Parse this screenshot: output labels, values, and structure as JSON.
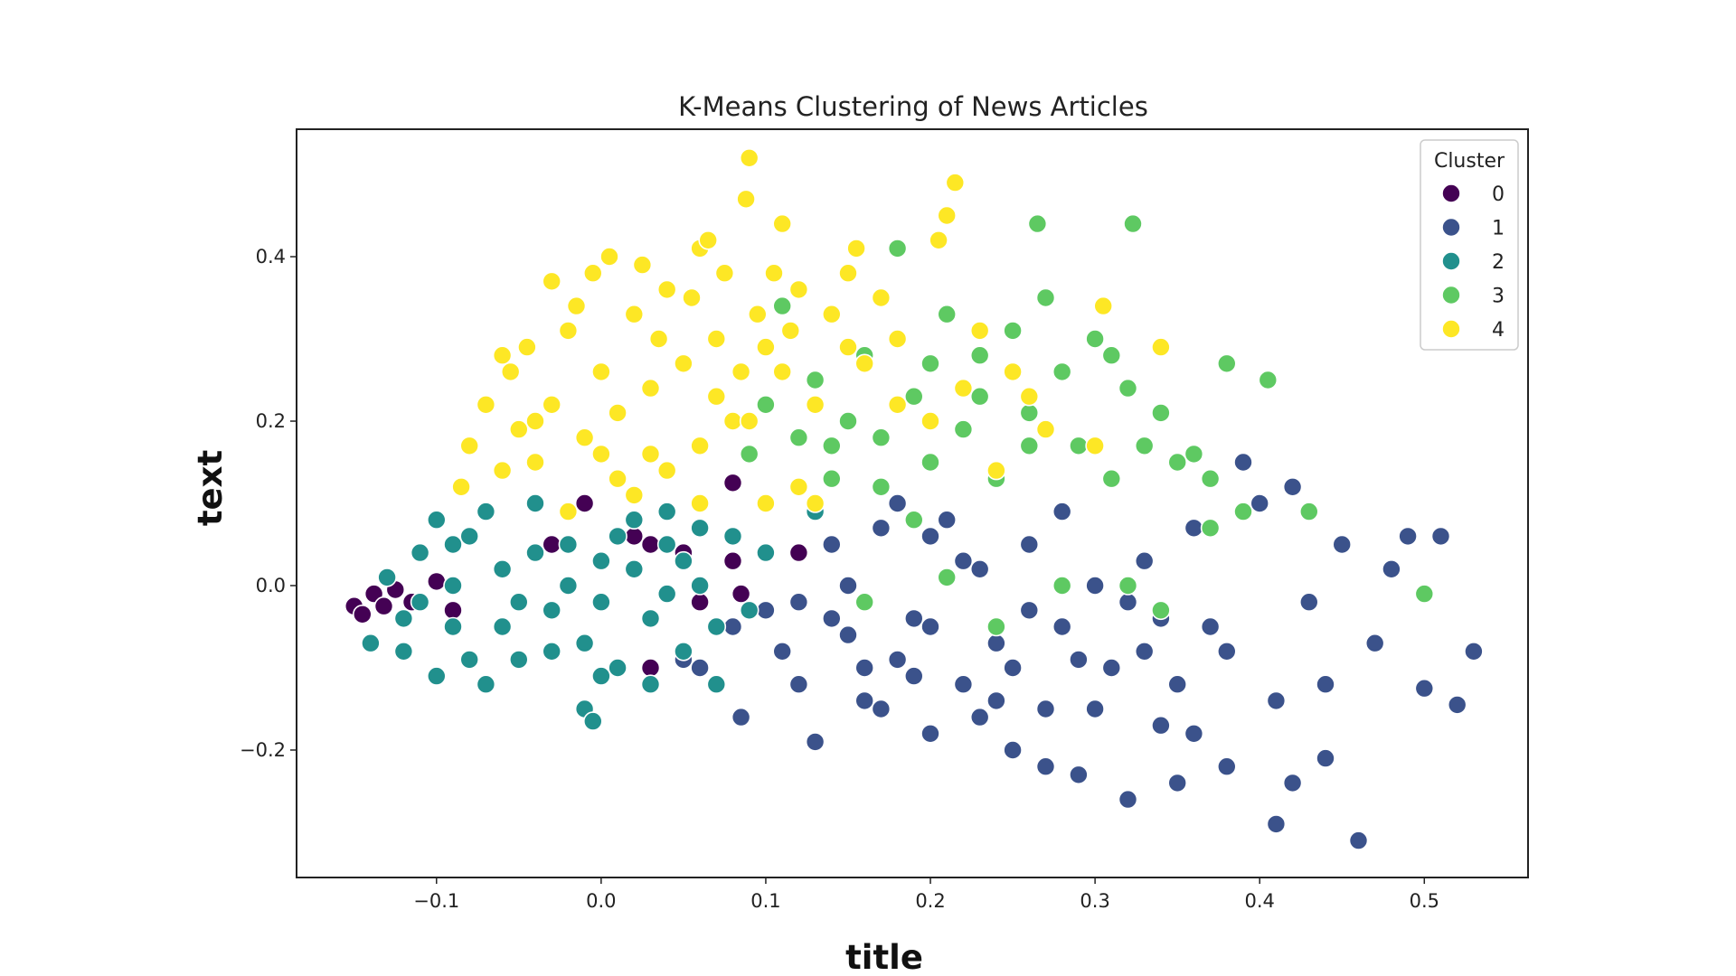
{
  "chart_data": {
    "type": "scatter",
    "title": "K-Means Clustering of News Articles",
    "xlabel": "title",
    "ylabel": "text",
    "xlim": [
      -0.185,
      0.563
    ],
    "ylim": [
      -0.355,
      0.555
    ],
    "xticks": [
      -0.1,
      0.0,
      0.1,
      0.2,
      0.3,
      0.4,
      0.5
    ],
    "xtick_labels": [
      "−0.1",
      "0.0",
      "0.1",
      "0.2",
      "0.3",
      "0.4",
      "0.5"
    ],
    "yticks": [
      -0.2,
      0.0,
      0.2,
      0.4
    ],
    "ytick_labels": [
      "−0.2",
      "0.0",
      "0.2",
      "0.4"
    ],
    "grid": false,
    "legend": {
      "title": "Cluster",
      "placement": "top-right"
    },
    "series": [
      {
        "name": "0",
        "color": "#440154",
        "points": [
          [
            -0.15,
            -0.025
          ],
          [
            -0.145,
            -0.035
          ],
          [
            -0.138,
            -0.01
          ],
          [
            -0.132,
            -0.025
          ],
          [
            -0.125,
            -0.005
          ],
          [
            -0.115,
            -0.02
          ],
          [
            -0.1,
            0.005
          ],
          [
            -0.09,
            -0.03
          ],
          [
            -0.06,
            0.02
          ],
          [
            -0.03,
            0.05
          ],
          [
            0.02,
            0.06
          ],
          [
            0.03,
            0.05
          ],
          [
            0.05,
            0.04
          ],
          [
            0.06,
            -0.02
          ],
          [
            0.08,
            0.125
          ],
          [
            0.08,
            0.03
          ],
          [
            0.085,
            -0.01
          ],
          [
            0.12,
            0.04
          ],
          [
            0.03,
            -0.1
          ],
          [
            -0.01,
            0.1
          ]
        ]
      },
      {
        "name": "1",
        "color": "#3b528b",
        "points": [
          [
            0.05,
            -0.09
          ],
          [
            0.06,
            -0.1
          ],
          [
            0.08,
            -0.05
          ],
          [
            0.085,
            -0.16
          ],
          [
            0.1,
            -0.03
          ],
          [
            0.11,
            -0.08
          ],
          [
            0.12,
            -0.12
          ],
          [
            0.13,
            -0.19
          ],
          [
            0.14,
            0.05
          ],
          [
            0.15,
            -0.06
          ],
          [
            0.16,
            -0.1
          ],
          [
            0.17,
            0.07
          ],
          [
            0.17,
            -0.15
          ],
          [
            0.18,
            0.1
          ],
          [
            0.19,
            -0.04
          ],
          [
            0.2,
            -0.18
          ],
          [
            0.21,
            0.08
          ],
          [
            0.22,
            -0.12
          ],
          [
            0.23,
            0.02
          ],
          [
            0.24,
            -0.07
          ],
          [
            0.25,
            -0.2
          ],
          [
            0.26,
            0.05
          ],
          [
            0.27,
            -0.15
          ],
          [
            0.28,
            0.09
          ],
          [
            0.29,
            -0.23
          ],
          [
            0.3,
            0.0
          ],
          [
            0.31,
            -0.1
          ],
          [
            0.32,
            -0.26
          ],
          [
            0.33,
            0.03
          ],
          [
            0.34,
            -0.17
          ],
          [
            0.35,
            -0.24
          ],
          [
            0.36,
            0.07
          ],
          [
            0.37,
            -0.05
          ],
          [
            0.38,
            -0.22
          ],
          [
            0.39,
            0.15
          ],
          [
            0.4,
            0.1
          ],
          [
            0.41,
            -0.14
          ],
          [
            0.42,
            0.12
          ],
          [
            0.43,
            -0.02
          ],
          [
            0.44,
            -0.21
          ],
          [
            0.45,
            0.05
          ],
          [
            0.46,
            -0.31
          ],
          [
            0.47,
            -0.07
          ],
          [
            0.48,
            0.02
          ],
          [
            0.49,
            0.06
          ],
          [
            0.5,
            -0.125
          ],
          [
            0.51,
            0.06
          ],
          [
            0.52,
            -0.145
          ],
          [
            0.53,
            -0.08
          ],
          [
            0.41,
            -0.29
          ],
          [
            0.2,
            -0.05
          ],
          [
            0.25,
            -0.1
          ],
          [
            0.3,
            -0.15
          ],
          [
            0.35,
            -0.12
          ],
          [
            0.15,
            0.0
          ],
          [
            0.22,
            0.03
          ],
          [
            0.28,
            -0.05
          ],
          [
            0.33,
            -0.08
          ],
          [
            0.18,
            -0.09
          ],
          [
            0.24,
            -0.14
          ],
          [
            0.14,
            -0.04
          ],
          [
            0.2,
            0.06
          ],
          [
            0.26,
            -0.03
          ],
          [
            0.32,
            -0.02
          ],
          [
            0.38,
            -0.08
          ],
          [
            0.44,
            -0.12
          ],
          [
            0.27,
            -0.22
          ],
          [
            0.36,
            -0.18
          ],
          [
            0.42,
            -0.24
          ],
          [
            0.16,
            -0.14
          ],
          [
            0.12,
            -0.02
          ],
          [
            0.19,
            -0.11
          ],
          [
            0.23,
            -0.16
          ],
          [
            0.29,
            -0.09
          ],
          [
            0.34,
            -0.04
          ]
        ]
      },
      {
        "name": "2",
        "color": "#21908d",
        "points": [
          [
            -0.14,
            -0.07
          ],
          [
            -0.13,
            0.01
          ],
          [
            -0.12,
            -0.08
          ],
          [
            -0.11,
            0.04
          ],
          [
            -0.1,
            -0.11
          ],
          [
            -0.1,
            0.08
          ],
          [
            -0.09,
            -0.05
          ],
          [
            -0.08,
            0.06
          ],
          [
            -0.07,
            -0.12
          ],
          [
            -0.06,
            0.02
          ],
          [
            -0.05,
            -0.09
          ],
          [
            -0.04,
            0.1
          ],
          [
            -0.03,
            -0.03
          ],
          [
            -0.02,
            0.05
          ],
          [
            -0.01,
            -0.07
          ],
          [
            0.0,
            0.03
          ],
          [
            0.01,
            -0.1
          ],
          [
            0.02,
            0.08
          ],
          [
            0.03,
            -0.04
          ],
          [
            0.04,
            0.05
          ],
          [
            0.05,
            -0.08
          ],
          [
            0.06,
            0.0
          ],
          [
            0.07,
            -0.12
          ],
          [
            0.08,
            0.06
          ],
          [
            0.09,
            -0.03
          ],
          [
            0.1,
            0.04
          ],
          [
            0.13,
            0.09
          ],
          [
            -0.01,
            -0.15
          ],
          [
            -0.005,
            -0.165
          ],
          [
            -0.12,
            -0.04
          ],
          [
            -0.09,
            0.0
          ],
          [
            -0.06,
            -0.05
          ],
          [
            -0.03,
            -0.08
          ],
          [
            0.0,
            -0.02
          ],
          [
            0.02,
            0.02
          ],
          [
            0.04,
            -0.01
          ],
          [
            -0.07,
            0.09
          ],
          [
            -0.04,
            0.04
          ],
          [
            -0.11,
            -0.02
          ],
          [
            0.01,
            0.06
          ],
          [
            0.03,
            -0.12
          ],
          [
            0.06,
            0.07
          ],
          [
            -0.08,
            -0.09
          ],
          [
            -0.02,
            0.0
          ],
          [
            0.05,
            0.03
          ],
          [
            -0.05,
            -0.02
          ],
          [
            0.07,
            -0.05
          ],
          [
            -0.09,
            0.05
          ],
          [
            0.0,
            -0.11
          ],
          [
            0.04,
            0.09
          ]
        ]
      },
      {
        "name": "3",
        "color": "#5ec962",
        "points": [
          [
            0.09,
            0.16
          ],
          [
            0.1,
            0.22
          ],
          [
            0.11,
            0.34
          ],
          [
            0.12,
            0.18
          ],
          [
            0.13,
            0.25
          ],
          [
            0.14,
            0.13
          ],
          [
            0.15,
            0.2
          ],
          [
            0.16,
            0.28
          ],
          [
            0.17,
            0.12
          ],
          [
            0.18,
            0.41
          ],
          [
            0.19,
            0.23
          ],
          [
            0.2,
            0.15
          ],
          [
            0.21,
            0.33
          ],
          [
            0.22,
            0.19
          ],
          [
            0.23,
            0.28
          ],
          [
            0.24,
            0.13
          ],
          [
            0.25,
            0.31
          ],
          [
            0.26,
            0.21
          ],
          [
            0.265,
            0.44
          ],
          [
            0.27,
            0.35
          ],
          [
            0.28,
            0.26
          ],
          [
            0.29,
            0.17
          ],
          [
            0.3,
            0.3
          ],
          [
            0.31,
            0.13
          ],
          [
            0.32,
            0.24
          ],
          [
            0.323,
            0.44
          ],
          [
            0.33,
            0.17
          ],
          [
            0.34,
            0.21
          ],
          [
            0.35,
            0.15
          ],
          [
            0.36,
            0.16
          ],
          [
            0.37,
            0.07
          ],
          [
            0.38,
            0.27
          ],
          [
            0.39,
            0.09
          ],
          [
            0.405,
            0.25
          ],
          [
            0.43,
            0.09
          ],
          [
            0.5,
            -0.01
          ],
          [
            0.16,
            -0.02
          ],
          [
            0.21,
            0.01
          ],
          [
            0.24,
            -0.05
          ],
          [
            0.32,
            0.0
          ],
          [
            0.28,
            0.0
          ],
          [
            0.34,
            -0.03
          ],
          [
            0.14,
            0.17
          ],
          [
            0.19,
            0.08
          ],
          [
            0.23,
            0.23
          ],
          [
            0.31,
            0.28
          ],
          [
            0.37,
            0.13
          ],
          [
            0.2,
            0.27
          ],
          [
            0.26,
            0.17
          ],
          [
            0.17,
            0.18
          ]
        ]
      },
      {
        "name": "4",
        "color": "#fde725",
        "points": [
          [
            -0.085,
            0.12
          ],
          [
            -0.08,
            0.17
          ],
          [
            -0.07,
            0.22
          ],
          [
            -0.06,
            0.14
          ],
          [
            -0.055,
            0.26
          ],
          [
            -0.05,
            0.19
          ],
          [
            -0.045,
            0.29
          ],
          [
            -0.04,
            0.15
          ],
          [
            -0.03,
            0.22
          ],
          [
            -0.03,
            0.37
          ],
          [
            -0.02,
            0.31
          ],
          [
            -0.01,
            0.18
          ],
          [
            -0.005,
            0.38
          ],
          [
            0.0,
            0.26
          ],
          [
            0.005,
            0.4
          ],
          [
            0.01,
            0.21
          ],
          [
            0.02,
            0.33
          ],
          [
            0.025,
            0.39
          ],
          [
            0.03,
            0.16
          ],
          [
            0.04,
            0.36
          ],
          [
            0.05,
            0.27
          ],
          [
            0.055,
            0.35
          ],
          [
            0.06,
            0.41
          ],
          [
            0.065,
            0.42
          ],
          [
            0.07,
            0.3
          ],
          [
            0.075,
            0.38
          ],
          [
            0.08,
            0.2
          ],
          [
            0.085,
            0.26
          ],
          [
            0.088,
            0.47
          ],
          [
            0.09,
            0.52
          ],
          [
            0.095,
            0.33
          ],
          [
            0.1,
            0.29
          ],
          [
            0.105,
            0.38
          ],
          [
            0.11,
            0.44
          ],
          [
            0.115,
            0.31
          ],
          [
            0.12,
            0.36
          ],
          [
            0.13,
            0.22
          ],
          [
            0.14,
            0.33
          ],
          [
            0.15,
            0.38
          ],
          [
            0.155,
            0.41
          ],
          [
            0.16,
            0.27
          ],
          [
            0.17,
            0.35
          ],
          [
            0.18,
            0.3
          ],
          [
            0.2,
            0.2
          ],
          [
            0.205,
            0.42
          ],
          [
            0.21,
            0.45
          ],
          [
            0.215,
            0.49
          ],
          [
            0.22,
            0.24
          ],
          [
            0.23,
            0.31
          ],
          [
            0.24,
            0.14
          ],
          [
            0.25,
            0.26
          ],
          [
            0.26,
            0.23
          ],
          [
            0.27,
            0.19
          ],
          [
            0.3,
            0.17
          ],
          [
            0.305,
            0.34
          ],
          [
            0.34,
            0.29
          ],
          [
            0.12,
            0.12
          ],
          [
            0.13,
            0.1
          ],
          [
            0.1,
            0.1
          ],
          [
            0.06,
            0.1
          ],
          [
            0.02,
            0.11
          ],
          [
            -0.02,
            0.09
          ],
          [
            0.04,
            0.14
          ],
          [
            -0.04,
            0.2
          ],
          [
            0.0,
            0.16
          ],
          [
            0.06,
            0.17
          ],
          [
            0.09,
            0.2
          ],
          [
            0.03,
            0.24
          ],
          [
            -0.06,
            0.28
          ],
          [
            0.07,
            0.23
          ],
          [
            0.11,
            0.26
          ],
          [
            0.035,
            0.3
          ],
          [
            -0.015,
            0.34
          ],
          [
            0.15,
            0.29
          ],
          [
            0.18,
            0.22
          ],
          [
            0.01,
            0.13
          ]
        ]
      }
    ]
  }
}
